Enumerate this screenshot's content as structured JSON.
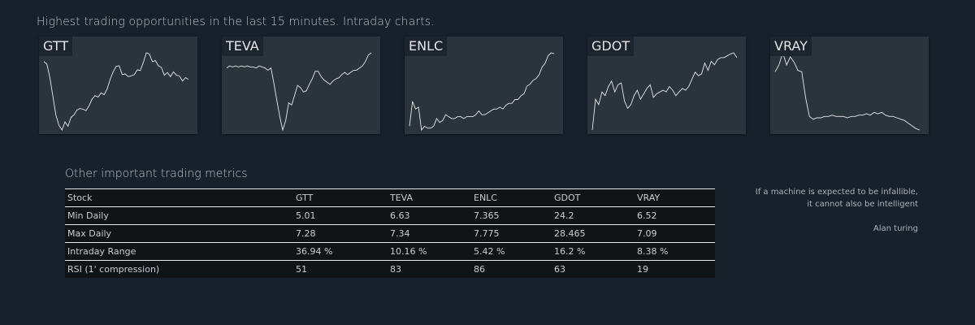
{
  "heading": "Highest trading opportunities in the last 15 minutes. Intraday charts.",
  "colors": {
    "background": "#17212b",
    "card": "#29343c",
    "line": "#e6e9eb",
    "table_row": "#111417"
  },
  "charts": [
    {
      "ticker": "GTT",
      "values": [
        7.02,
        6.95,
        6.55,
        6.0,
        5.45,
        5.15,
        5.01,
        5.25,
        5.12,
        5.38,
        5.46,
        5.6,
        5.64,
        5.62,
        5.58,
        5.72,
        5.92,
        6.02,
        5.98,
        6.1,
        6.05,
        6.22,
        6.5,
        6.72,
        6.88,
        6.9,
        6.64,
        6.66,
        6.58,
        6.6,
        6.64,
        6.78,
        6.76,
        7.0,
        7.28,
        7.25,
        7.02,
        7.05,
        6.9,
        6.85,
        6.62,
        6.7,
        6.58,
        6.72,
        6.62,
        6.6,
        6.45,
        6.55,
        6.5
      ]
    },
    {
      "ticker": "TEVA",
      "values": [
        7.2,
        7.22,
        7.21,
        7.22,
        7.21,
        7.22,
        7.21,
        7.22,
        7.21,
        7.21,
        7.2,
        7.22,
        7.21,
        7.2,
        7.18,
        7.2,
        7.06,
        6.9,
        6.75,
        6.63,
        6.72,
        6.88,
        6.86,
        6.95,
        7.04,
        7.02,
        6.98,
        6.99,
        7.05,
        7.1,
        7.17,
        7.17,
        7.12,
        7.09,
        7.07,
        7.05,
        7.08,
        7.1,
        7.11,
        7.14,
        7.16,
        7.14,
        7.16,
        7.18,
        7.18,
        7.2,
        7.22,
        7.26,
        7.32,
        7.34
      ]
    },
    {
      "ticker": "ENLC",
      "values": [
        7.39,
        7.52,
        7.48,
        7.49,
        7.37,
        7.39,
        7.38,
        7.38,
        7.39,
        7.43,
        7.41,
        7.42,
        7.45,
        7.44,
        7.43,
        7.43,
        7.44,
        7.44,
        7.43,
        7.44,
        7.44,
        7.44,
        7.45,
        7.47,
        7.45,
        7.45,
        7.46,
        7.47,
        7.48,
        7.48,
        7.49,
        7.48,
        7.5,
        7.51,
        7.51,
        7.53,
        7.53,
        7.55,
        7.56,
        7.6,
        7.61,
        7.63,
        7.64,
        7.66,
        7.7,
        7.72,
        7.76,
        7.775,
        7.77
      ]
    },
    {
      "ticker": "GDOT",
      "values": [
        24.2,
        25.9,
        25.6,
        26.3,
        26.1,
        26.6,
        26.9,
        26.3,
        26.7,
        26.8,
        25.8,
        25.4,
        25.6,
        26.1,
        26.4,
        25.9,
        26.2,
        26.5,
        26.7,
        26.0,
        26.2,
        26.3,
        26.4,
        26.3,
        26.6,
        26.4,
        26.1,
        26.3,
        26.5,
        26.4,
        26.6,
        27.0,
        27.4,
        27.2,
        27.3,
        27.9,
        27.5,
        28.0,
        27.8,
        28.1,
        28.2,
        28.2,
        28.3,
        28.4,
        28.465,
        28.2
      ]
    },
    {
      "ticker": "VRAY",
      "values": [
        6.95,
        7.0,
        7.09,
        7.0,
        7.06,
        7.02,
        6.96,
        6.95,
        6.76,
        6.62,
        6.6,
        6.61,
        6.61,
        6.62,
        6.62,
        6.63,
        6.62,
        6.62,
        6.62,
        6.61,
        6.62,
        6.62,
        6.63,
        6.63,
        6.64,
        6.63,
        6.65,
        6.64,
        6.65,
        6.63,
        6.62,
        6.62,
        6.61,
        6.6,
        6.59,
        6.57,
        6.55,
        6.53,
        6.52
      ]
    }
  ],
  "metrics": {
    "title": "Other important trading metrics",
    "header": [
      "Stock",
      "GTT",
      "TEVA",
      "ENLC",
      "GDOT",
      "VRAY"
    ],
    "rows": [
      [
        "Min Daily",
        "5.01",
        "6.63",
        "7.365",
        "24.2",
        "6.52"
      ],
      [
        "Max Daily",
        "7.28",
        "7.34",
        "7.775",
        "28.465",
        "7.09"
      ],
      [
        "Intraday Range",
        "36.94 %",
        "10.16 %",
        "5.42 %",
        "16.2 %",
        "8.38 %"
      ],
      [
        "RSI (1' compression)",
        "51",
        "83",
        "86",
        "63",
        "19"
      ]
    ]
  },
  "quote": {
    "line1": "If a machine is expected to be infallible,",
    "line2": "it cannot also be intelligent",
    "author": "Alan turing"
  }
}
